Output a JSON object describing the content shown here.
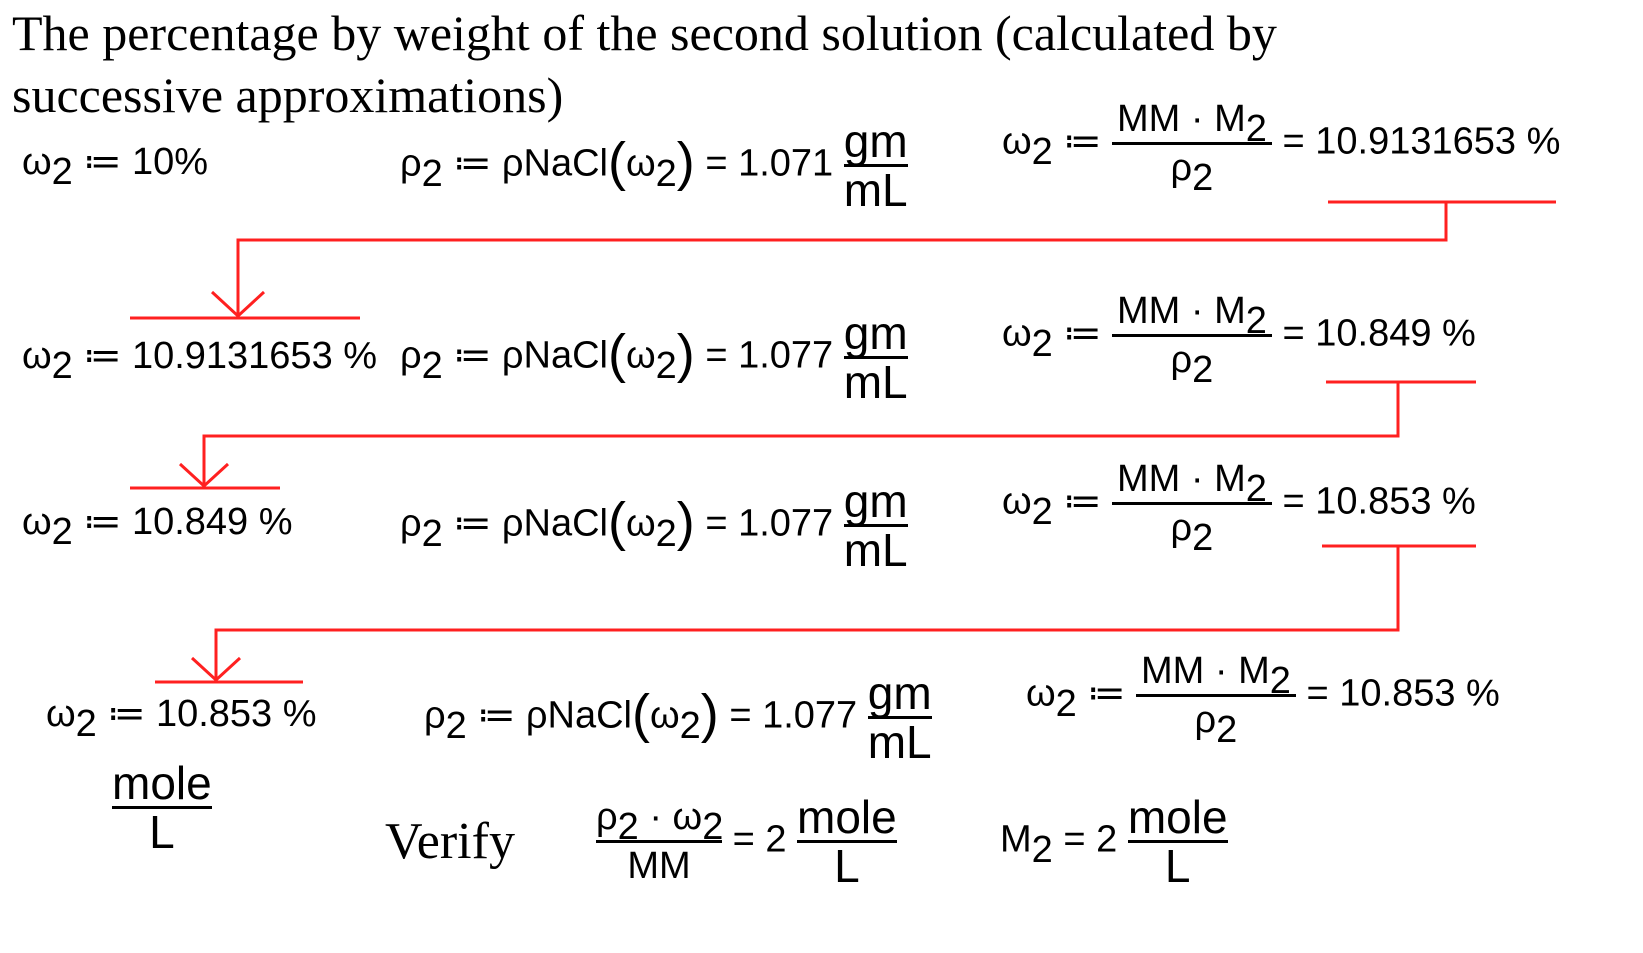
{
  "heading": "The percentage by weight of the second solution (calculated by successive approximations)",
  "sym": {
    "omega": "ω",
    "two": "2",
    "rho": "ρ",
    "define": "≔",
    "eq": "=",
    "rho_fn": "ρNaCl",
    "mm": "MM",
    "m": "M",
    "dot": "·",
    "gm": "gm",
    "ml": "mL",
    "mole": "mole",
    "l": "L"
  },
  "iterations": [
    {
      "omega_in": "10%",
      "rho_value": "1.071",
      "omega_out": "10.9131653 %"
    },
    {
      "omega_in": "10.9131653 %",
      "rho_value": "1.077",
      "omega_out": "10.849 %"
    },
    {
      "omega_in": "10.849 %",
      "rho_value": "1.077",
      "omega_out": "10.853 %"
    },
    {
      "omega_in": "10.853 %",
      "rho_value": "1.077",
      "omega_out": "10.853 %"
    }
  ],
  "verify": {
    "label": "Verify",
    "result_number": "2",
    "m2_number": "2"
  },
  "colors": {
    "arrow": "#ff2020",
    "text": "#000000"
  }
}
